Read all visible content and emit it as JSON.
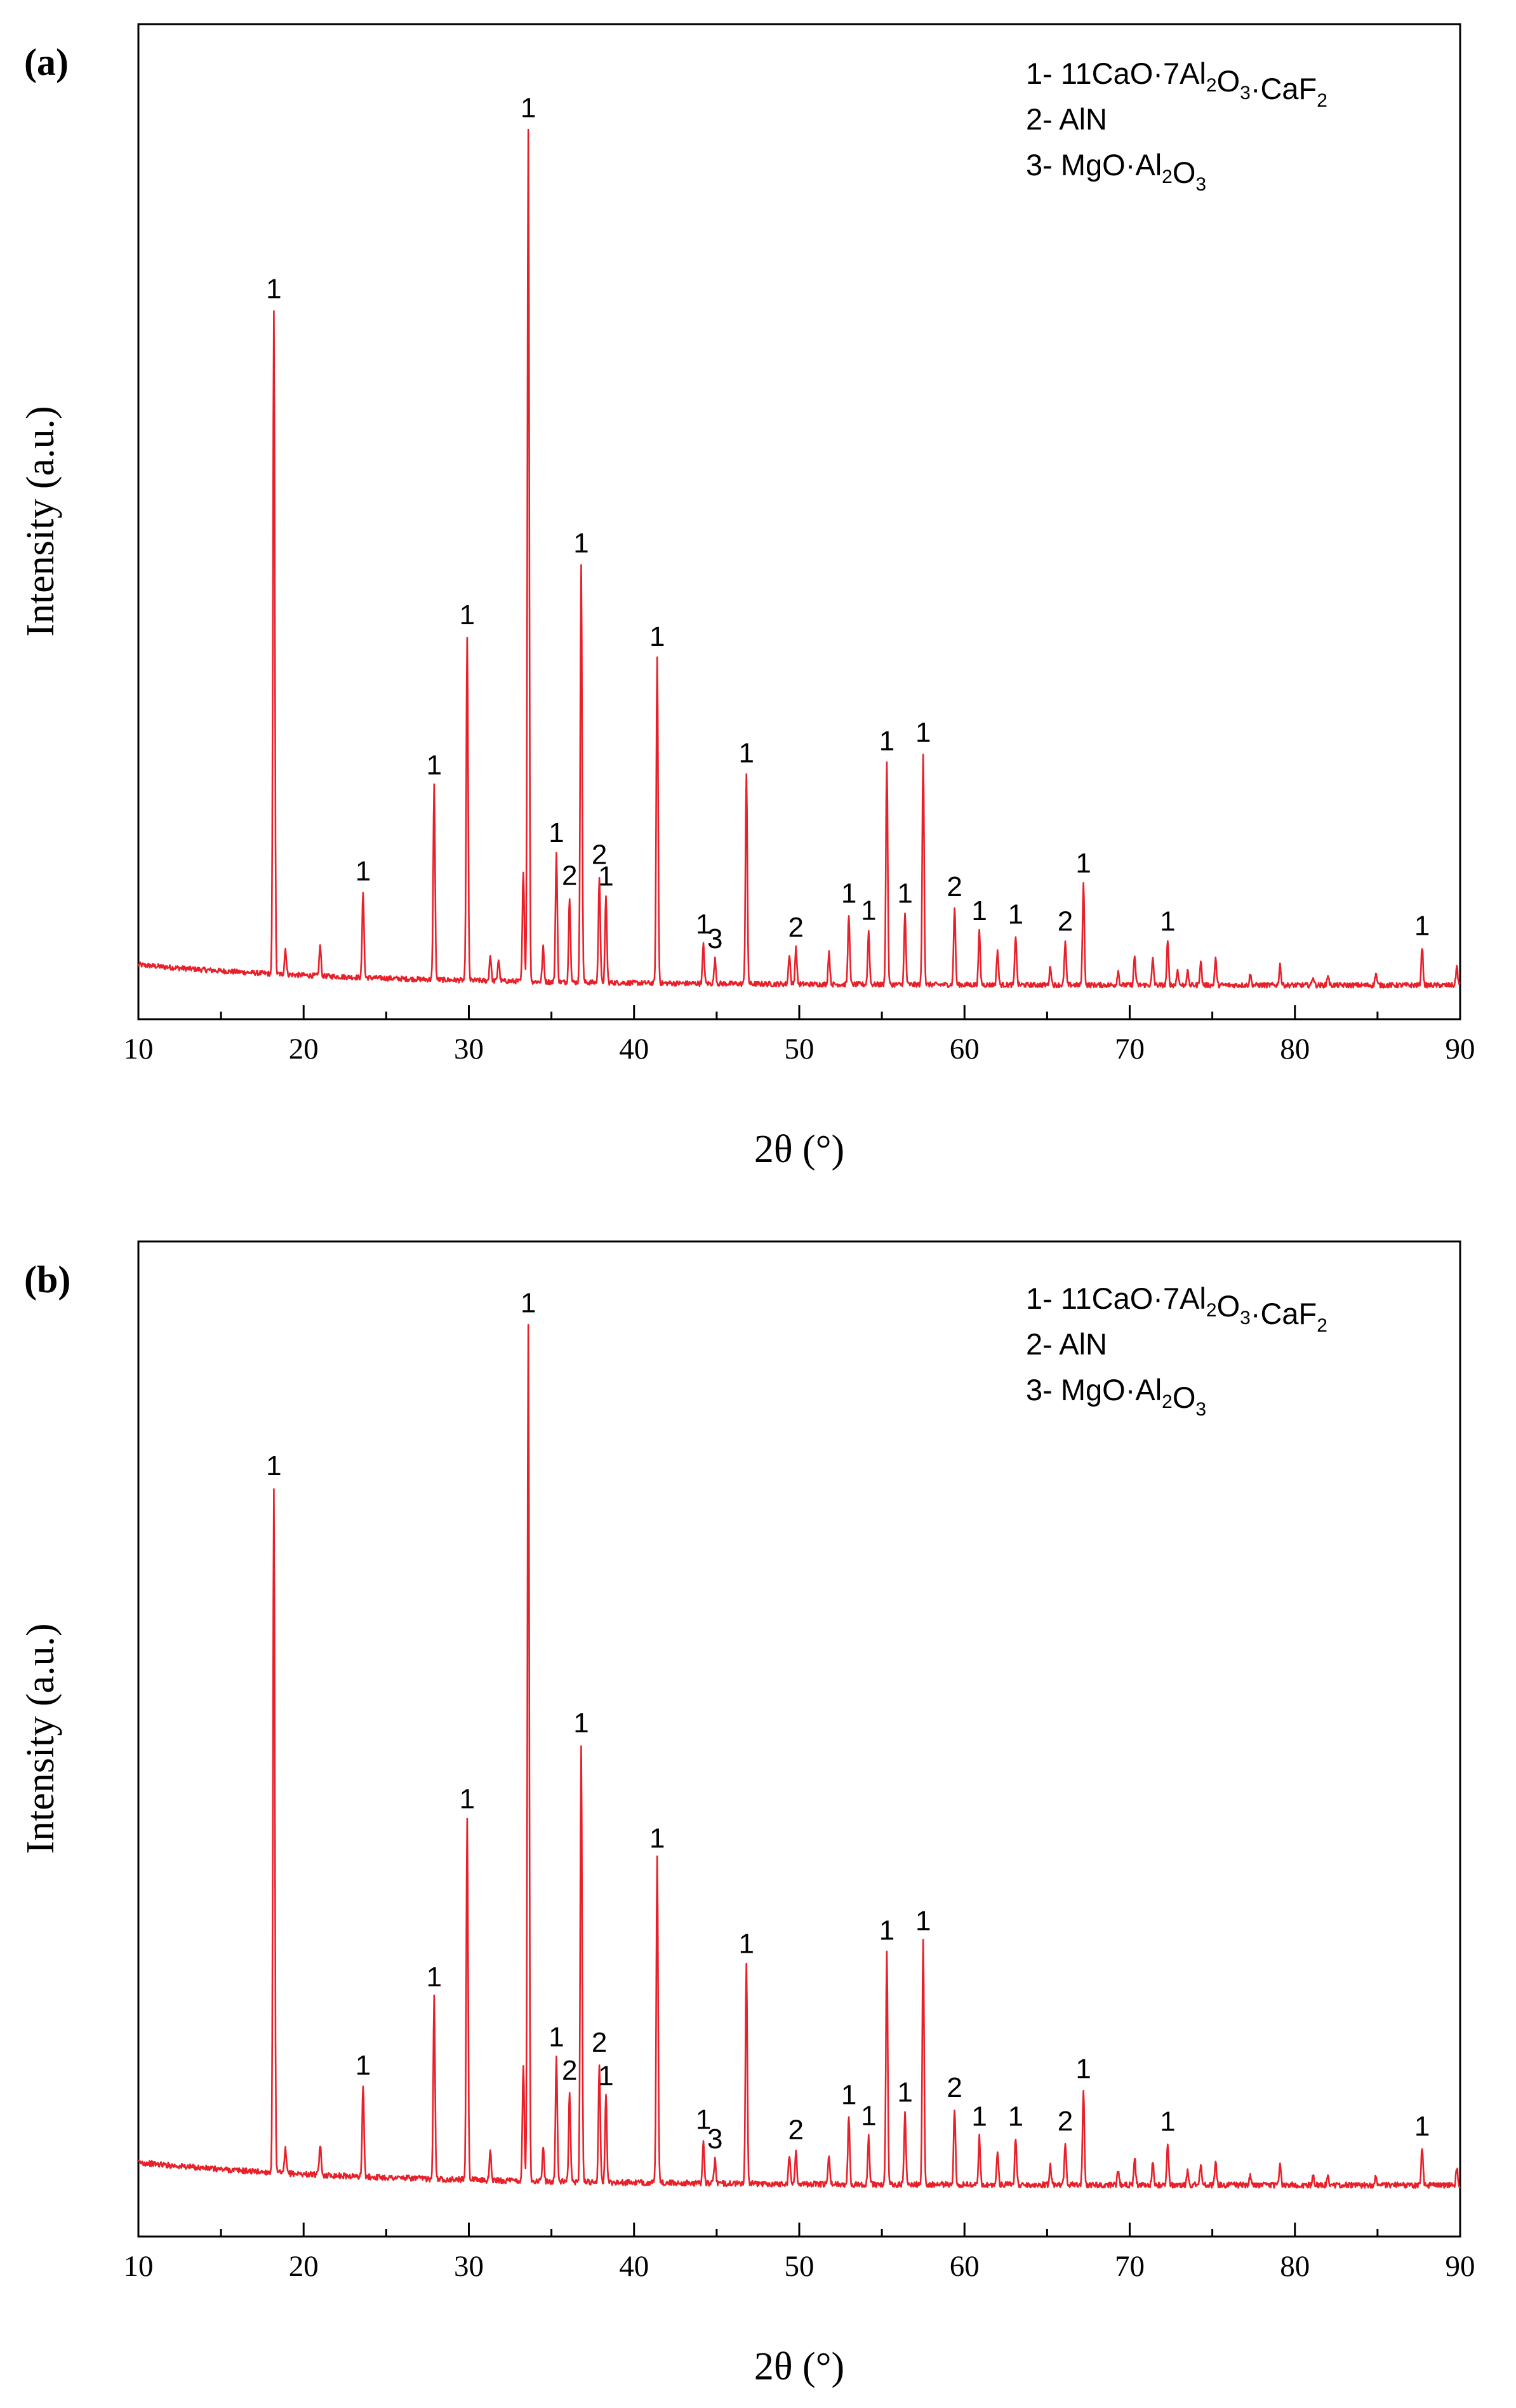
{
  "chart_data": [
    {
      "type": "line",
      "panel_label": "(a)",
      "xlabel": "2θ (°)",
      "ylabel": "Intensity (a.u.)",
      "xlim": [
        10,
        90
      ],
      "ylim": [
        0,
        1
      ],
      "x_ticks": [
        10,
        20,
        30,
        40,
        50,
        60,
        70,
        80,
        90
      ],
      "line_color": "#e8202a",
      "legend": [
        {
          "num": "1- ",
          "parts": [
            [
              "11CaO·7Al",
              ""
            ],
            [
              "2",
              "sub"
            ],
            [
              "O",
              ""
            ],
            [
              "3",
              "sub"
            ],
            [
              "·CaF",
              ""
            ],
            [
              "2",
              "sub"
            ]
          ]
        },
        {
          "num": "2- ",
          "parts": [
            [
              "AlN",
              ""
            ]
          ]
        },
        {
          "num": "3- ",
          "parts": [
            [
              "MgO·Al",
              ""
            ],
            [
              "2",
              "sub"
            ],
            [
              "O",
              ""
            ],
            [
              "3",
              "sub"
            ]
          ]
        }
      ],
      "peaks": [
        {
          "x": 18.2,
          "h": 0.775,
          "label": "1"
        },
        {
          "x": 18.9,
          "h": 0.03,
          "label": ""
        },
        {
          "x": 21.0,
          "h": 0.035,
          "label": ""
        },
        {
          "x": 23.6,
          "h": 0.1,
          "label": "1"
        },
        {
          "x": 27.9,
          "h": 0.226,
          "label": "1"
        },
        {
          "x": 29.9,
          "h": 0.402,
          "label": "1"
        },
        {
          "x": 31.3,
          "h": 0.03,
          "label": ""
        },
        {
          "x": 31.8,
          "h": 0.025,
          "label": ""
        },
        {
          "x": 33.3,
          "h": 0.13,
          "label": ""
        },
        {
          "x": 33.6,
          "h": 0.995,
          "label": "1"
        },
        {
          "x": 34.5,
          "h": 0.04,
          "label": ""
        },
        {
          "x": 35.3,
          "h": 0.15,
          "label": "1"
        },
        {
          "x": 36.1,
          "h": 0.1,
          "label": "2"
        },
        {
          "x": 36.8,
          "h": 0.488,
          "label": "1"
        },
        {
          "x": 37.9,
          "h": 0.125,
          "label": "2"
        },
        {
          "x": 38.3,
          "h": 0.1,
          "label": "1"
        },
        {
          "x": 41.4,
          "h": 0.38,
          "label": "1"
        },
        {
          "x": 44.2,
          "h": 0.045,
          "label": "1"
        },
        {
          "x": 44.9,
          "h": 0.028,
          "label": "3"
        },
        {
          "x": 49.4,
          "h": 0.035,
          "label": ""
        },
        {
          "x": 49.8,
          "h": 0.042,
          "label": "2"
        },
        {
          "x": 46.8,
          "h": 0.245,
          "label": "1"
        },
        {
          "x": 51.8,
          "h": 0.038,
          "label": ""
        },
        {
          "x": 53.0,
          "h": 0.082,
          "label": "1"
        },
        {
          "x": 54.2,
          "h": 0.062,
          "label": "1"
        },
        {
          "x": 55.3,
          "h": 0.26,
          "label": "1"
        },
        {
          "x": 56.4,
          "h": 0.082,
          "label": "1"
        },
        {
          "x": 57.5,
          "h": 0.27,
          "label": "1"
        },
        {
          "x": 59.4,
          "h": 0.09,
          "label": "2"
        },
        {
          "x": 60.9,
          "h": 0.062,
          "label": "1"
        },
        {
          "x": 62.0,
          "h": 0.04,
          "label": ""
        },
        {
          "x": 63.1,
          "h": 0.058,
          "label": "1"
        },
        {
          "x": 65.2,
          "h": 0.022,
          "label": ""
        },
        {
          "x": 66.1,
          "h": 0.05,
          "label": "2"
        },
        {
          "x": 67.2,
          "h": 0.118,
          "label": "1"
        },
        {
          "x": 69.3,
          "h": 0.016,
          "label": ""
        },
        {
          "x": 70.3,
          "h": 0.034,
          "label": ""
        },
        {
          "x": 71.4,
          "h": 0.03,
          "label": ""
        },
        {
          "x": 72.3,
          "h": 0.05,
          "label": "1"
        },
        {
          "x": 72.9,
          "h": 0.018,
          "label": ""
        },
        {
          "x": 73.5,
          "h": 0.016,
          "label": ""
        },
        {
          "x": 74.3,
          "h": 0.028,
          "label": ""
        },
        {
          "x": 75.2,
          "h": 0.03,
          "label": ""
        },
        {
          "x": 77.3,
          "h": 0.012,
          "label": ""
        },
        {
          "x": 79.1,
          "h": 0.024,
          "label": ""
        },
        {
          "x": 81.1,
          "h": 0.01,
          "label": ""
        },
        {
          "x": 82.0,
          "h": 0.012,
          "label": ""
        },
        {
          "x": 84.9,
          "h": 0.014,
          "label": ""
        },
        {
          "x": 87.7,
          "h": 0.045,
          "label": "1"
        },
        {
          "x": 89.8,
          "h": 0.022,
          "label": ""
        }
      ]
    },
    {
      "type": "line",
      "panel_label": "(b)",
      "xlabel": "2θ (°)",
      "ylabel": "Intensity (a.u.)",
      "xlim": [
        10,
        90
      ],
      "ylim": [
        0,
        1
      ],
      "x_ticks": [
        10,
        20,
        30,
        40,
        50,
        60,
        70,
        80,
        90
      ],
      "line_color": "#e8202a",
      "legend": [
        {
          "num": "1- ",
          "parts": [
            [
              "11CaO·7Al",
              ""
            ],
            [
              "2",
              "sub"
            ],
            [
              "O",
              ""
            ],
            [
              "3",
              "sub"
            ],
            [
              "·CaF",
              ""
            ],
            [
              "2",
              "sub"
            ]
          ]
        },
        {
          "num": "2- ",
          "parts": [
            [
              "AlN",
              ""
            ]
          ]
        },
        {
          "num": "3- ",
          "parts": [
            [
              "MgO·Al",
              ""
            ],
            [
              "2",
              "sub"
            ],
            [
              "O",
              ""
            ],
            [
              "3",
              "sub"
            ]
          ]
        }
      ],
      "peaks": [
        {
          "x": 18.2,
          "h": 0.72,
          "label": "1"
        },
        {
          "x": 18.9,
          "h": 0.025,
          "label": ""
        },
        {
          "x": 21.0,
          "h": 0.032,
          "label": ""
        },
        {
          "x": 23.6,
          "h": 0.095,
          "label": "1"
        },
        {
          "x": 27.9,
          "h": 0.19,
          "label": "1"
        },
        {
          "x": 29.9,
          "h": 0.378,
          "label": "1"
        },
        {
          "x": 31.3,
          "h": 0.03,
          "label": ""
        },
        {
          "x": 33.3,
          "h": 0.12,
          "label": ""
        },
        {
          "x": 33.6,
          "h": 0.9,
          "label": "1"
        },
        {
          "x": 34.5,
          "h": 0.035,
          "label": ""
        },
        {
          "x": 35.3,
          "h": 0.13,
          "label": "1"
        },
        {
          "x": 36.1,
          "h": 0.095,
          "label": "2"
        },
        {
          "x": 36.8,
          "h": 0.46,
          "label": "1"
        },
        {
          "x": 37.9,
          "h": 0.125,
          "label": "2"
        },
        {
          "x": 38.3,
          "h": 0.09,
          "label": "1"
        },
        {
          "x": 41.4,
          "h": 0.34,
          "label": "1"
        },
        {
          "x": 44.2,
          "h": 0.045,
          "label": "1"
        },
        {
          "x": 44.9,
          "h": 0.025,
          "label": "3"
        },
        {
          "x": 46.8,
          "h": 0.23,
          "label": "1"
        },
        {
          "x": 49.4,
          "h": 0.03,
          "label": ""
        },
        {
          "x": 49.8,
          "h": 0.035,
          "label": "2"
        },
        {
          "x": 51.8,
          "h": 0.03,
          "label": ""
        },
        {
          "x": 53.0,
          "h": 0.072,
          "label": "1"
        },
        {
          "x": 54.2,
          "h": 0.05,
          "label": "1"
        },
        {
          "x": 55.3,
          "h": 0.245,
          "label": "1"
        },
        {
          "x": 56.4,
          "h": 0.075,
          "label": "1"
        },
        {
          "x": 57.5,
          "h": 0.255,
          "label": "1"
        },
        {
          "x": 59.4,
          "h": 0.08,
          "label": "2"
        },
        {
          "x": 60.9,
          "h": 0.05,
          "label": "1"
        },
        {
          "x": 62.0,
          "h": 0.035,
          "label": ""
        },
        {
          "x": 63.1,
          "h": 0.05,
          "label": "1"
        },
        {
          "x": 65.2,
          "h": 0.02,
          "label": ""
        },
        {
          "x": 66.1,
          "h": 0.045,
          "label": "2"
        },
        {
          "x": 67.2,
          "h": 0.1,
          "label": "1"
        },
        {
          "x": 69.3,
          "h": 0.015,
          "label": ""
        },
        {
          "x": 70.3,
          "h": 0.03,
          "label": ""
        },
        {
          "x": 71.4,
          "h": 0.025,
          "label": ""
        },
        {
          "x": 72.3,
          "h": 0.045,
          "label": "1"
        },
        {
          "x": 73.5,
          "h": 0.015,
          "label": ""
        },
        {
          "x": 74.3,
          "h": 0.022,
          "label": ""
        },
        {
          "x": 75.2,
          "h": 0.025,
          "label": ""
        },
        {
          "x": 77.3,
          "h": 0.01,
          "label": ""
        },
        {
          "x": 79.1,
          "h": 0.02,
          "label": ""
        },
        {
          "x": 81.1,
          "h": 0.01,
          "label": ""
        },
        {
          "x": 82.0,
          "h": 0.01,
          "label": ""
        },
        {
          "x": 84.9,
          "h": 0.012,
          "label": ""
        },
        {
          "x": 87.7,
          "h": 0.04,
          "label": "1"
        },
        {
          "x": 89.8,
          "h": 0.018,
          "label": ""
        }
      ]
    }
  ]
}
